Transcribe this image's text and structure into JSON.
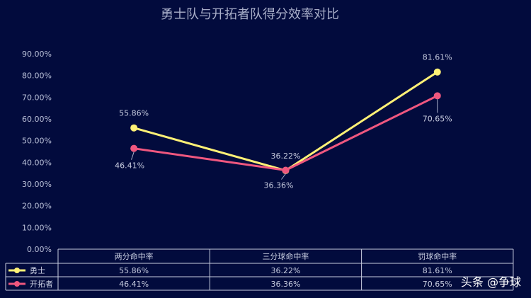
{
  "chart_data": {
    "type": "line",
    "title": "勇士队与开拓者队得分效率对比",
    "categories": [
      "两分命中率",
      "三分球命中率",
      "罚球命中率"
    ],
    "ylim": [
      0,
      90
    ],
    "yticks": [
      "0.00%",
      "10.00%",
      "20.00%",
      "30.00%",
      "40.00%",
      "50.00%",
      "60.00%",
      "70.00%",
      "80.00%",
      "90.00%"
    ],
    "series": [
      {
        "name": "勇士",
        "color": "#fff176",
        "values": [
          55.86,
          36.22,
          81.61
        ],
        "labels": [
          "55.86%",
          "36.22%",
          "81.61%"
        ]
      },
      {
        "name": "开拓者",
        "color": "#f0577f",
        "values": [
          46.41,
          36.36,
          70.65
        ],
        "labels": [
          "46.41%",
          "36.36%",
          "70.65%"
        ]
      }
    ],
    "data_table": true,
    "legend": "in-table-left"
  },
  "watermark": "头条 @争球"
}
